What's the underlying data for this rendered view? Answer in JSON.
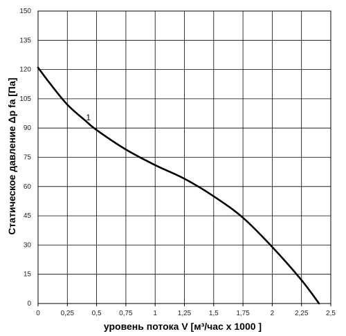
{
  "chart_data": {
    "type": "line",
    "xlabel": "уровень потока  V [м³/час x 1000 ]",
    "ylabel": "Статическое давление  Δp fa [Па]",
    "xlim": [
      0,
      2.5
    ],
    "ylim": [
      0,
      150
    ],
    "x_ticks": [
      {
        "value": 0,
        "label": "0"
      },
      {
        "value": 0.25,
        "label": "0,25"
      },
      {
        "value": 0.5,
        "label": "0,5"
      },
      {
        "value": 0.75,
        "label": "0,75"
      },
      {
        "value": 1,
        "label": "1"
      },
      {
        "value": 1.25,
        "label": "1,25"
      },
      {
        "value": 1.5,
        "label": "1,5"
      },
      {
        "value": 1.75,
        "label": "1,75"
      },
      {
        "value": 2,
        "label": "2"
      },
      {
        "value": 2.25,
        "label": "2,25"
      },
      {
        "value": 2.5,
        "label": "2,5"
      }
    ],
    "y_ticks": [
      {
        "value": 0,
        "label": "0"
      },
      {
        "value": 15,
        "label": "15"
      },
      {
        "value": 30,
        "label": "30"
      },
      {
        "value": 45,
        "label": "45"
      },
      {
        "value": 60,
        "label": "60"
      },
      {
        "value": 75,
        "label": "75"
      },
      {
        "value": 90,
        "label": "90"
      },
      {
        "value": 105,
        "label": "105"
      },
      {
        "value": 120,
        "label": "120"
      },
      {
        "value": 135,
        "label": "135"
      },
      {
        "value": 150,
        "label": "150"
      }
    ],
    "grid": true,
    "series": [
      {
        "name": "1",
        "color": "#000000",
        "x": [
          0,
          0.1,
          0.25,
          0.4,
          0.5,
          0.75,
          1.0,
          1.25,
          1.5,
          1.75,
          2.0,
          2.25,
          2.4
        ],
        "y": [
          121,
          113,
          102,
          94,
          89,
          79,
          71,
          64,
          55,
          44,
          29,
          12,
          0
        ]
      }
    ],
    "annotations": [
      {
        "text": "1",
        "x": 0.43,
        "y": 94
      }
    ]
  }
}
